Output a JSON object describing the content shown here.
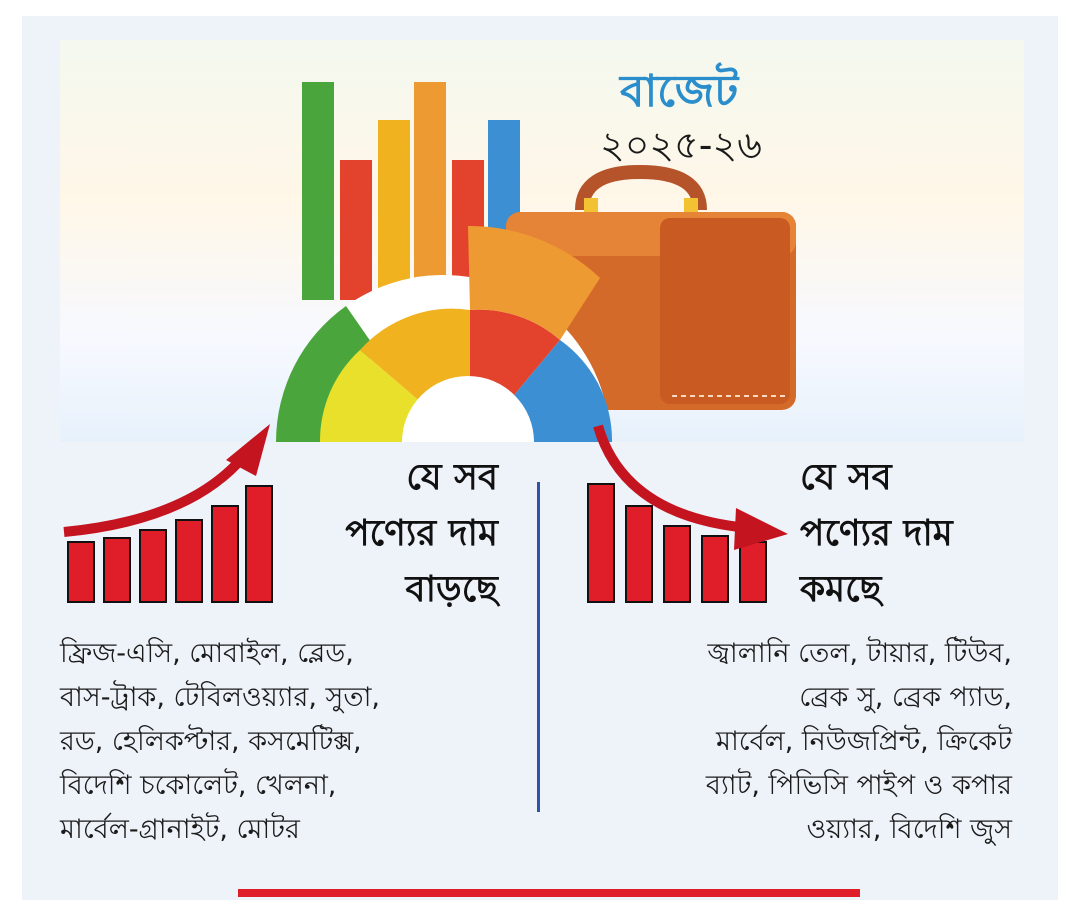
{
  "header": {
    "title": "বাজেট",
    "year": "২০২৫-২৬"
  },
  "increase": {
    "heading_lines": [
      "যে সব",
      "পণ্যের দাম",
      "বাড়ছে"
    ],
    "items": [
      "ফ্রিজ-এসি, মোবাইল, ব্লেড,",
      "বাস-ট্রাক, টেবিলওয়্যার, সুতা,",
      "রড, হেলিকপ্টার, কসমেটিক্স,",
      "বিদেশি চকোলেট, খেলনা,",
      "মার্বেল-গ্রানাইট, মোটর"
    ]
  },
  "decrease": {
    "heading_lines": [
      "যে সব",
      "পণ্যের দাম",
      "কমছে"
    ],
    "items": [
      "জ্বালানি তেল, টায়ার, টিউব,",
      "ব্রেক সু, ব্রেক প্যাড,",
      "মার্বেল, নিউজপ্রিন্ট,  ক্রিকেট",
      "ব্যাট, পিভিসি পাইপ ও কপার",
      "ওয়্যার, বিদেশি জুস"
    ]
  },
  "colors": {
    "accent_red": "#e01e2a",
    "title_blue": "#2a8dcc",
    "divider_blue": "#2c55a8"
  }
}
